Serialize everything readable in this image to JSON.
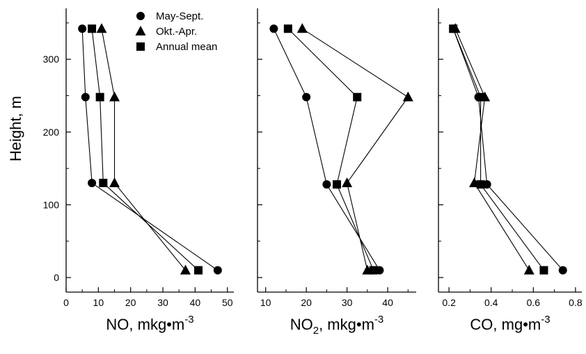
{
  "y_axis": {
    "label": "Height, m",
    "ticks": [
      0,
      100,
      200,
      300
    ],
    "ylim": [
      -20,
      370
    ]
  },
  "legend": {
    "position": "top-right of first panel",
    "items": [
      {
        "label": "May-Sept.",
        "marker": "circle"
      },
      {
        "label": "Okt.-Apr.",
        "marker": "triangle"
      },
      {
        "label": "Annual mean",
        "marker": "square"
      }
    ]
  },
  "chart_data": [
    {
      "type": "line",
      "xlabel": "NO, mkg•m",
      "xlabel_sup": "-3",
      "xlim": [
        0,
        52
      ],
      "xticks": [
        0,
        10,
        20,
        30,
        40,
        50
      ],
      "ylabel": "Height, m",
      "ylim": [
        -20,
        370
      ],
      "series": [
        {
          "name": "May-Sept.",
          "marker": "circle",
          "points": [
            [
              47,
              10
            ],
            [
              8,
              130
            ],
            [
              6,
              248
            ],
            [
              5,
              342
            ]
          ]
        },
        {
          "name": "Okt.-Apr.",
          "marker": "triangle",
          "points": [
            [
              37,
              10
            ],
            [
              15,
              130
            ],
            [
              15,
              248
            ],
            [
              11,
              342
            ]
          ]
        },
        {
          "name": "Annual mean",
          "marker": "square",
          "points": [
            [
              41,
              10
            ],
            [
              11.5,
              130
            ],
            [
              10.5,
              248
            ],
            [
              8,
              342
            ]
          ]
        }
      ]
    },
    {
      "type": "line",
      "xlabel": "NO",
      "xlabel_sub": "2",
      "xlabel_rest": ", mkg•m",
      "xlabel_sup": "-3",
      "xlim": [
        8,
        47
      ],
      "xticks": [
        10,
        20,
        30,
        40
      ],
      "ylim": [
        -20,
        370
      ],
      "series": [
        {
          "name": "May-Sept.",
          "marker": "circle",
          "points": [
            [
              38,
              10
            ],
            [
              25,
              128
            ],
            [
              20,
              248
            ],
            [
              12,
              342
            ]
          ]
        },
        {
          "name": "Okt.-Apr.",
          "marker": "triangle",
          "points": [
            [
              35,
              10
            ],
            [
              30,
              130
            ],
            [
              45,
              248
            ],
            [
              19,
              342
            ]
          ]
        },
        {
          "name": "Annual mean",
          "marker": "square",
          "points": [
            [
              36.5,
              10
            ],
            [
              27.5,
              128
            ],
            [
              32.5,
              248
            ],
            [
              15.5,
              342
            ]
          ]
        }
      ]
    },
    {
      "type": "line",
      "xlabel": "CO, mg•m",
      "xlabel_sup": "-3",
      "xlim": [
        0.15,
        0.83
      ],
      "xticks": [
        0.2,
        0.4,
        0.6,
        0.8
      ],
      "ylim": [
        -20,
        370
      ],
      "series": [
        {
          "name": "May-Sept.",
          "marker": "circle",
          "points": [
            [
              0.74,
              10
            ],
            [
              0.38,
              128
            ],
            [
              0.34,
              248
            ],
            [
              0.22,
              342
            ]
          ]
        },
        {
          "name": "Okt.-Apr.",
          "marker": "triangle",
          "points": [
            [
              0.58,
              10
            ],
            [
              0.32,
              130
            ],
            [
              0.37,
              248
            ],
            [
              0.23,
              342
            ]
          ]
        },
        {
          "name": "Annual mean",
          "marker": "square",
          "points": [
            [
              0.65,
              10
            ],
            [
              0.35,
              128
            ],
            [
              0.35,
              248
            ],
            [
              0.22,
              342
            ]
          ]
        }
      ]
    }
  ]
}
